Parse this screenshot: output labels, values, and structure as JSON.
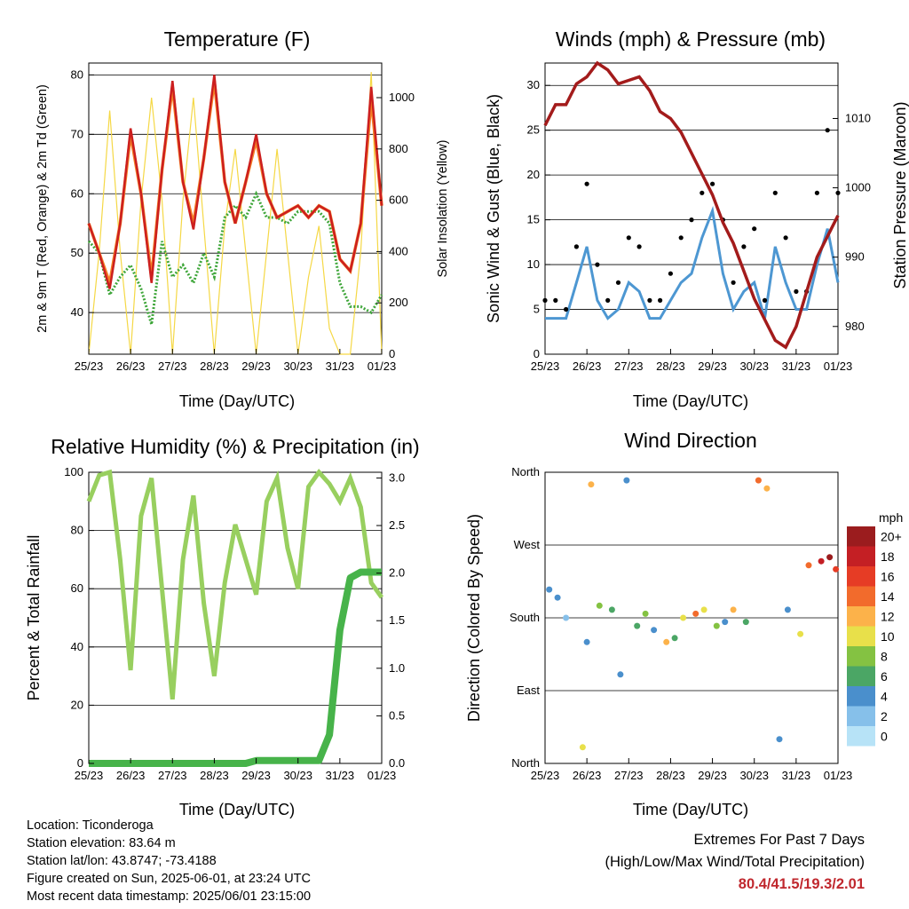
{
  "colors": {
    "temp2m": "#cc1f1f",
    "temp9m": "#f57f25",
    "dewpoint": "#3fa63a",
    "solar": "#f5d845",
    "wind": "#4d97d2",
    "gust": "#000000",
    "pressure": "#a31b1b",
    "rh": "#98cf5f",
    "precip": "#47b34a",
    "extremes": "#c0282e"
  },
  "x_ticks": [
    "25/23",
    "26/23",
    "27/23",
    "28/23",
    "29/23",
    "30/23",
    "31/23",
    "01/23"
  ],
  "chart_data": [
    {
      "id": "temperature",
      "type": "line",
      "title": "Temperature (F)",
      "xlabel": "Time (Day/UTC)",
      "ylabel": "2m & 9m T (Red, Orange) & 2m Td (Green)",
      "ylabel_right": "Solar Insolation (Yellow)",
      "ylim": [
        33,
        82
      ],
      "ylim_right": [
        0,
        1135
      ],
      "yticks": [
        40,
        50,
        60,
        70,
        80
      ],
      "yticks_right": [
        0,
        200,
        400,
        600,
        800,
        1000
      ],
      "x": [
        0,
        0.25,
        0.5,
        0.75,
        1,
        1.25,
        1.5,
        1.75,
        2,
        2.25,
        2.5,
        2.75,
        3,
        3.25,
        3.5,
        3.75,
        4,
        4.25,
        4.5,
        4.75,
        5,
        5.25,
        5.5,
        5.75,
        6,
        6.25,
        6.5,
        6.75,
        7
      ],
      "series": [
        {
          "name": "2m T",
          "values": [
            55,
            50,
            44,
            55,
            71,
            60,
            45,
            64,
            79,
            62,
            54,
            66,
            80,
            62,
            55,
            62,
            70,
            60,
            56,
            57,
            58,
            56,
            58,
            57,
            49,
            47,
            55,
            78,
            58
          ]
        },
        {
          "name": "9m T",
          "values": [
            55,
            50,
            45,
            55,
            70,
            60,
            46,
            64,
            78,
            62,
            55,
            66,
            79,
            62,
            55,
            62,
            69,
            60,
            56,
            57,
            58,
            56,
            58,
            57,
            49,
            47,
            55,
            76,
            58
          ]
        },
        {
          "name": "2m Td",
          "values": [
            52,
            50,
            43,
            46,
            48,
            44,
            38,
            52,
            46,
            48,
            45,
            50,
            46,
            56,
            58,
            56,
            60,
            56,
            56,
            55,
            57,
            57,
            57,
            55,
            45,
            41,
            41,
            40,
            43
          ]
        },
        {
          "name": "Solar Insolation",
          "axis": "right",
          "values": [
            0,
            400,
            950,
            400,
            0,
            600,
            1000,
            600,
            0,
            600,
            1000,
            500,
            0,
            500,
            800,
            400,
            0,
            400,
            800,
            400,
            0,
            300,
            500,
            100,
            0,
            0,
            400,
            1100,
            0
          ]
        }
      ]
    },
    {
      "id": "winds",
      "type": "scatter",
      "title": "Winds (mph) & Pressure (mb)",
      "xlabel": "Time (Day/UTC)",
      "ylabel": "Sonic Wind & Gust (Blue, Black)",
      "ylabel_right": "Station Pressure (Maroon)",
      "ylim": [
        0,
        32.5
      ],
      "ylim_right": [
        976,
        1018
      ],
      "yticks": [
        0,
        5,
        10,
        15,
        20,
        25,
        30
      ],
      "yticks_right": [
        980,
        990,
        1000,
        1010
      ],
      "x": [
        0,
        0.25,
        0.5,
        0.75,
        1,
        1.25,
        1.5,
        1.75,
        2,
        2.25,
        2.5,
        2.75,
        3,
        3.25,
        3.5,
        3.75,
        4,
        4.25,
        4.5,
        4.75,
        5,
        5.25,
        5.5,
        5.75,
        6,
        6.25,
        6.5,
        6.75,
        7
      ],
      "series": [
        {
          "name": "Sonic Wind",
          "values": [
            4,
            4,
            4,
            8,
            12,
            6,
            4,
            5,
            8,
            7,
            4,
            4,
            6,
            8,
            9,
            13,
            16,
            9,
            5,
            7,
            8,
            4,
            12,
            8,
            5,
            5,
            10,
            14,
            8
          ]
        },
        {
          "name": "Gust",
          "values": [
            6,
            6,
            5,
            12,
            19,
            10,
            6,
            8,
            13,
            12,
            6,
            6,
            9,
            13,
            15,
            18,
            19,
            15,
            8,
            12,
            14,
            6,
            18,
            13,
            7,
            7,
            18,
            25,
            18
          ]
        },
        {
          "name": "Station Pressure",
          "axis": "right",
          "values": [
            1009,
            1012,
            1012,
            1015,
            1016,
            1018,
            1017,
            1015,
            1015.5,
            1016,
            1014,
            1011,
            1010,
            1008,
            1005,
            1002,
            999,
            995,
            992,
            988,
            984,
            981,
            978,
            977,
            980,
            985,
            990,
            993,
            996
          ]
        }
      ]
    },
    {
      "id": "humidity",
      "type": "line",
      "title": "Relative Humidity (%) & Precipitation (in)",
      "xlabel": "Time (Day/UTC)",
      "ylabel": "Percent & Total Rainfall",
      "ylim": [
        0,
        100
      ],
      "ylim_right": [
        0,
        3.06
      ],
      "yticks": [
        0,
        20,
        40,
        60,
        80,
        100
      ],
      "yticks_right": [
        "0.0",
        "0.5",
        "1.0",
        "1.5",
        "2.0",
        "2.5",
        "3.0"
      ],
      "x": [
        0,
        0.25,
        0.5,
        0.75,
        1,
        1.25,
        1.5,
        1.75,
        2,
        2.25,
        2.5,
        2.75,
        3,
        3.25,
        3.5,
        3.75,
        4,
        4.25,
        4.5,
        4.75,
        5,
        5.25,
        5.5,
        5.75,
        6,
        6.25,
        6.5,
        6.75,
        7
      ],
      "series": [
        {
          "name": "Relative Humidity",
          "values": [
            90,
            99,
            100,
            70,
            32,
            85,
            98,
            60,
            22,
            70,
            92,
            55,
            30,
            62,
            82,
            70,
            58,
            90,
            98,
            74,
            60,
            95,
            100,
            96,
            90,
            98,
            88,
            62,
            57
          ]
        },
        {
          "name": "Total Precipitation",
          "axis": "right",
          "values": [
            0,
            0,
            0,
            0,
            0,
            0,
            0,
            0,
            0,
            0,
            0,
            0,
            0,
            0,
            0,
            0,
            0.03,
            0.03,
            0.03,
            0.03,
            0.03,
            0.03,
            0.03,
            0.3,
            1.4,
            1.95,
            2.01,
            2.01,
            2.01
          ]
        }
      ]
    },
    {
      "id": "direction",
      "type": "scatter",
      "title": "Wind Direction",
      "xlabel": "Time (Day/UTC)",
      "ylabel": "Direction (Colored By Speed)",
      "ylim": [
        0,
        360
      ],
      "ytick_labels": [
        "North",
        "East",
        "South",
        "West",
        "North"
      ],
      "legend_title": "mph",
      "legend_labels": [
        "0",
        "2",
        "4",
        "6",
        "8",
        "10",
        "12",
        "14",
        "16",
        "18",
        "20+"
      ],
      "legend_colors": [
        "#b7e3f7",
        "#86c0ea",
        "#4a8fcc",
        "#4ba665",
        "#84c242",
        "#e8e04a",
        "#fcb24a",
        "#f26b2c",
        "#e63c25",
        "#c41f24",
        "#9b1c1e"
      ],
      "x": [
        0.1,
        0.3,
        0.5,
        0.9,
        1.0,
        1.1,
        1.3,
        1.6,
        1.8,
        1.95,
        2.2,
        2.4,
        2.6,
        2.9,
        3.1,
        3.3,
        3.6,
        3.8,
        4.1,
        4.3,
        4.5,
        4.8,
        5.1,
        5.3,
        5.6,
        5.8,
        6.1,
        6.3,
        6.6,
        6.8,
        6.95
      ],
      "series": [
        {
          "name": "Direction",
          "values": [
            215,
            205,
            180,
            20,
            150,
            345,
            195,
            190,
            110,
            350,
            170,
            185,
            165,
            150,
            155,
            180,
            185,
            190,
            170,
            175,
            190,
            175,
            350,
            340,
            30,
            190,
            160,
            245,
            250,
            255,
            240
          ]
        },
        {
          "name": "Speed",
          "values": [
            3,
            4,
            2,
            10,
            4,
            12,
            8,
            5,
            4,
            3,
            5,
            8,
            4,
            12,
            6,
            10,
            14,
            9,
            7,
            4,
            12,
            6,
            14,
            11,
            4,
            3,
            9,
            14,
            18,
            20,
            16
          ]
        }
      ]
    }
  ],
  "info": {
    "location": "Location: Ticonderoga",
    "elevation": "Station elevation: 83.64 m",
    "latlon": "Station lat/lon: 43.8747; -73.4188",
    "created": "Figure created on Sun, 2025-06-01, at 23:24 UTC",
    "recent": "Most recent data timestamp: 2025/06/01 23:15:00",
    "extremes_title": "Extremes For Past 7 Days",
    "extremes_subtitle": "(High/Low/Max Wind/Total Precipitation)",
    "extremes_values": "80.4/41.5/19.3/2.01"
  }
}
